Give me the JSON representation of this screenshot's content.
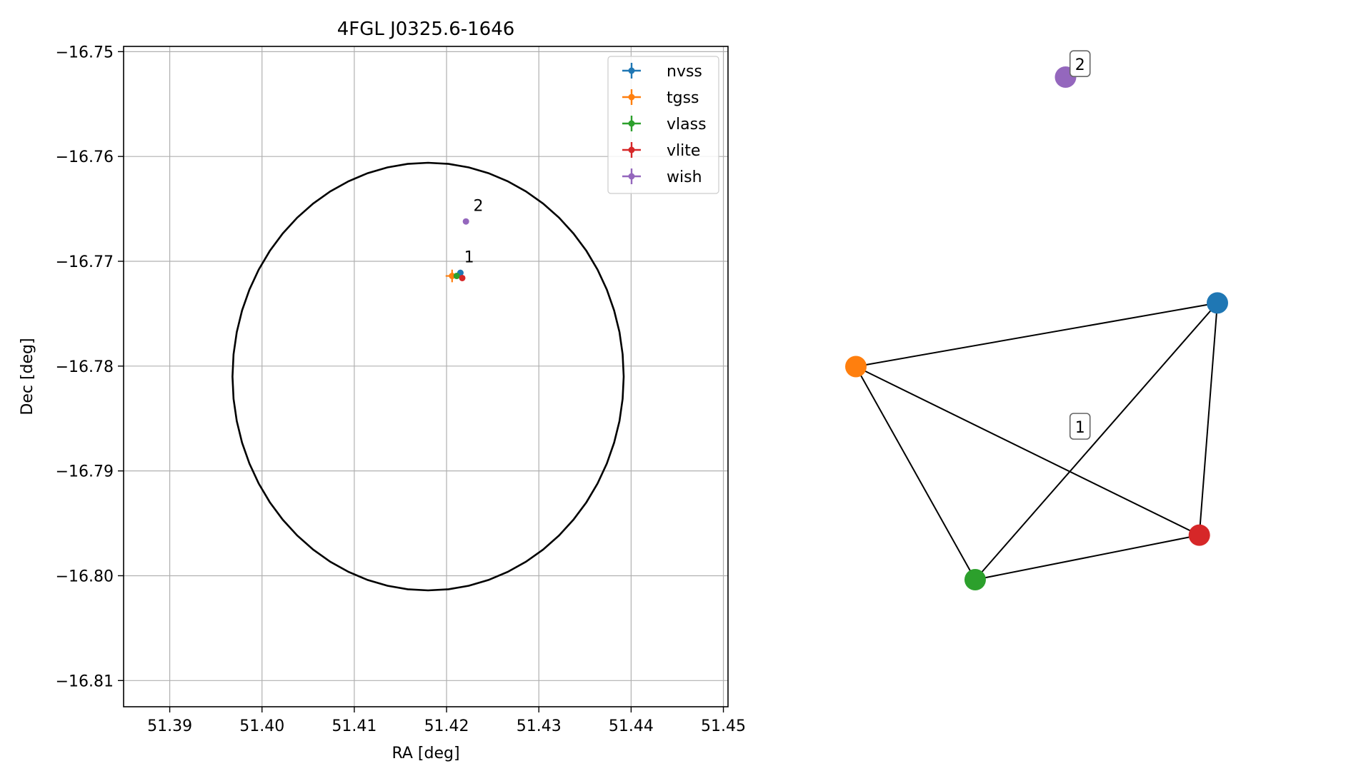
{
  "chart_data": [
    {
      "type": "scatter",
      "title": "4FGL J0325.6-1646",
      "xlabel": "RA [deg]",
      "ylabel": "Dec [deg]",
      "xlim": [
        51.385,
        51.4505
      ],
      "ylim": [
        -16.8125,
        -16.7495
      ],
      "xticks": [
        51.39,
        51.4,
        51.41,
        51.42,
        51.43,
        51.44,
        51.45
      ],
      "xtick_labels": [
        "51.39",
        "51.40",
        "51.41",
        "51.42",
        "51.43",
        "51.44",
        "51.45"
      ],
      "yticks": [
        -16.75,
        -16.76,
        -16.77,
        -16.78,
        -16.79,
        -16.8,
        -16.81
      ],
      "ytick_labels": [
        "−16.75",
        "−16.76",
        "−16.77",
        "−16.78",
        "−16.79",
        "−16.80",
        "−16.81"
      ],
      "grid": true,
      "legend_position": "top-right",
      "ellipse": {
        "center_ra": 51.418,
        "center_dec": -16.781,
        "ra_radius": 0.0212,
        "dec_radius": 0.0204,
        "color": "#000000"
      },
      "series": [
        {
          "name": "nvss",
          "color": "#1f77b4",
          "points": [
            {
              "ra": 51.4215,
              "dec": -16.7711,
              "ra_err": 0.0003,
              "dec_err": 0.0002
            }
          ]
        },
        {
          "name": "tgss",
          "color": "#ff7f0e",
          "points": [
            {
              "ra": 51.4206,
              "dec": -16.7714,
              "ra_err": 0.0007,
              "dec_err": 0.0006
            }
          ]
        },
        {
          "name": "vlass",
          "color": "#2ca02c",
          "points": [
            {
              "ra": 51.4211,
              "dec": -16.7714,
              "ra_err": 0.0001,
              "dec_err": 0.0001
            }
          ]
        },
        {
          "name": "vlite",
          "color": "#d62728",
          "points": [
            {
              "ra": 51.4217,
              "dec": -16.7716,
              "ra_err": 0.0001,
              "dec_err": 0.0001
            }
          ]
        },
        {
          "name": "wish",
          "color": "#9467bd",
          "points": [
            {
              "ra": 51.4221,
              "dec": -16.7662,
              "ra_err": 0.0001,
              "dec_err": 0.0001
            }
          ]
        }
      ],
      "annotations": [
        {
          "text": "1",
          "ra": 51.4219,
          "dec": -16.7701
        },
        {
          "text": "2",
          "ra": 51.4229,
          "dec": -16.7652
        }
      ]
    },
    {
      "type": "graph",
      "nodes": [
        {
          "id": "nvss",
          "color": "#1f77b4",
          "x": 1.0,
          "y": 0.2
        },
        {
          "id": "tgss",
          "color": "#ff7f0e",
          "x": 0.0,
          "y": 0.0
        },
        {
          "id": "vlass",
          "color": "#2ca02c",
          "x": 0.33,
          "y": -0.67
        },
        {
          "id": "vlite",
          "color": "#d62728",
          "x": 0.95,
          "y": -0.53
        },
        {
          "id": "wish",
          "color": "#9467bd",
          "x": 0.58,
          "y": 0.91
        }
      ],
      "edges": [
        [
          "tgss",
          "nvss"
        ],
        [
          "tgss",
          "vlass"
        ],
        [
          "tgss",
          "vlite"
        ],
        [
          "vlass",
          "nvss"
        ],
        [
          "vlass",
          "vlite"
        ],
        [
          "nvss",
          "vlite"
        ]
      ],
      "group_labels": [
        {
          "text": "1",
          "x": 0.62,
          "y": -0.19
        },
        {
          "text": "2",
          "x": 0.62,
          "y": 0.95
        }
      ]
    }
  ]
}
